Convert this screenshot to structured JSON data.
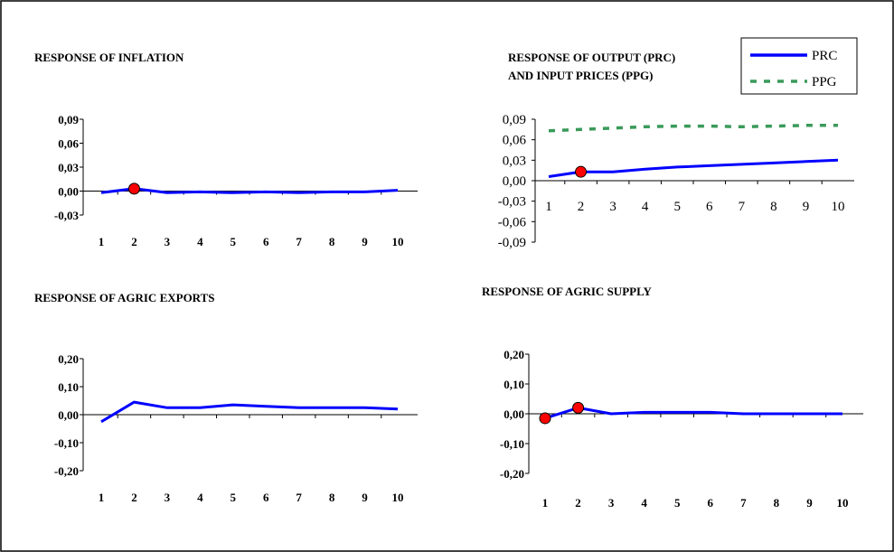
{
  "chart_data": [
    {
      "type": "line",
      "title": "RESPONSE OF INFLATION",
      "x": [
        1,
        2,
        3,
        4,
        5,
        6,
        7,
        8,
        9,
        10
      ],
      "ylim": [
        -0.03,
        0.09
      ],
      "yticks": [
        "0,09",
        "0,06",
        "0,03",
        "0,00",
        "-0,03"
      ],
      "xticks": [
        "1",
        "2",
        "3",
        "4",
        "5",
        "6",
        "7",
        "8",
        "9",
        "10"
      ],
      "series": [
        {
          "values": [
            -0.002,
            0.003,
            -0.002,
            -0.001,
            -0.002,
            -0.001,
            -0.002,
            -0.001,
            -0.001,
            0.001
          ],
          "color": "#0000ff"
        }
      ],
      "markers": [
        {
          "x": 2,
          "y": 0.003,
          "color": "#ff0000"
        }
      ],
      "grid": false
    },
    {
      "type": "line",
      "title_lines": [
        "RESPONSE OF OUTPUT (PRC)",
        "AND INPUT  PRICES (PPG)"
      ],
      "x": [
        1,
        2,
        3,
        4,
        5,
        6,
        7,
        8,
        9,
        10
      ],
      "ylim": [
        -0.09,
        0.09
      ],
      "yticks": [
        "0,09",
        "0,06",
        "0,03",
        "0,00",
        "-0,03",
        "-0,06",
        "-0,09"
      ],
      "xticks": [
        "1",
        "2",
        "3",
        "4",
        "5",
        "6",
        "7",
        "8",
        "9",
        "10"
      ],
      "series": [
        {
          "name": "PRC",
          "values": [
            0.006,
            0.013,
            0.013,
            0.017,
            0.02,
            0.022,
            0.024,
            0.026,
            0.028,
            0.03
          ],
          "color": "#0000ff",
          "style": "solid"
        },
        {
          "name": "PPG",
          "values": [
            0.073,
            0.075,
            0.077,
            0.079,
            0.08,
            0.08,
            0.079,
            0.08,
            0.081,
            0.081
          ],
          "color": "#3a9a5a",
          "style": "dashed"
        }
      ],
      "markers": [
        {
          "x": 2,
          "y": 0.013,
          "color": "#ff0000"
        }
      ],
      "legend": "top-right",
      "grid": false
    },
    {
      "type": "line",
      "title": "RESPONSE OF AGRIC EXPORTS",
      "x": [
        1,
        2,
        3,
        4,
        5,
        6,
        7,
        8,
        9,
        10
      ],
      "ylim": [
        -0.2,
        0.2
      ],
      "yticks": [
        "0,20",
        "0,10",
        "0,00",
        "-0,10",
        "-0,20"
      ],
      "xticks": [
        "1",
        "2",
        "3",
        "4",
        "5",
        "6",
        "7",
        "8",
        "9",
        "10"
      ],
      "series": [
        {
          "values": [
            -0.025,
            0.045,
            0.025,
            0.025,
            0.035,
            0.03,
            0.025,
            0.025,
            0.025,
            0.02
          ],
          "color": "#0000ff"
        }
      ],
      "markers": [],
      "grid": false
    },
    {
      "type": "line",
      "title": "RESPONSE OF AGRIC SUPPLY",
      "x": [
        1,
        2,
        3,
        4,
        5,
        6,
        7,
        8,
        9,
        10
      ],
      "ylim": [
        -0.2,
        0.2
      ],
      "yticks": [
        "0,20",
        "0,10",
        "0,00",
        "-0,10",
        "-0,20"
      ],
      "xticks": [
        "1",
        "2",
        "3",
        "4",
        "5",
        "6",
        "7",
        "8",
        "9",
        "10"
      ],
      "series": [
        {
          "values": [
            -0.015,
            0.02,
            0.0,
            0.005,
            0.005,
            0.005,
            0.0,
            0.0,
            0.0,
            0.0
          ],
          "color": "#0000ff"
        }
      ],
      "markers": [
        {
          "x": 1,
          "y": -0.015,
          "color": "#ff0000"
        },
        {
          "x": 2,
          "y": 0.02,
          "color": "#ff0000"
        }
      ],
      "grid": false
    }
  ]
}
